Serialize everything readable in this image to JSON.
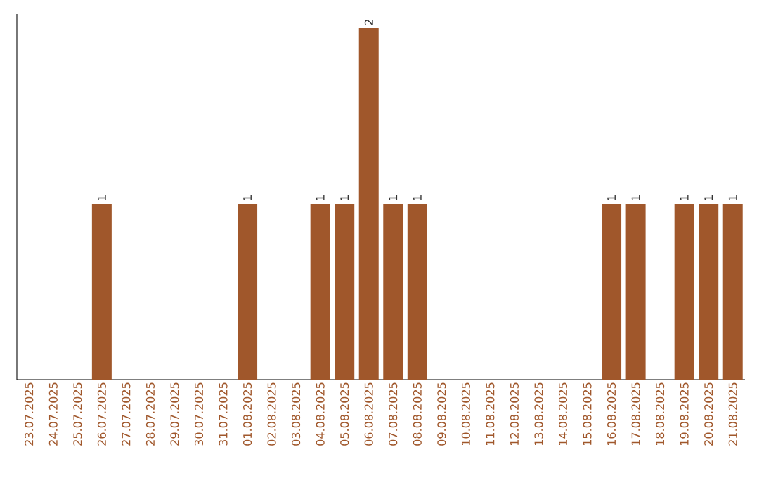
{
  "chart_data": {
    "type": "bar",
    "categories": [
      "23.07.2025",
      "24.07.2025",
      "25.07.2025",
      "26.07.2025",
      "27.07.2025",
      "28.07.2025",
      "29.07.2025",
      "30.07.2025",
      "31.07.2025",
      "01.08.2025",
      "02.08.2025",
      "03.08.2025",
      "04.08.2025",
      "05.08.2025",
      "06.08.2025",
      "07.08.2025",
      "08.08.2025",
      "09.08.2025",
      "10.08.2025",
      "11.08.2025",
      "12.08.2025",
      "13.08.2025",
      "14.08.2025",
      "15.08.2025",
      "16.08.2025",
      "17.08.2025",
      "18.08.2025",
      "19.08.2025",
      "20.08.2025",
      "21.08.2025"
    ],
    "values": [
      0,
      0,
      0,
      1,
      0,
      0,
      0,
      0,
      0,
      1,
      0,
      0,
      1,
      1,
      2,
      1,
      1,
      0,
      0,
      0,
      0,
      0,
      0,
      0,
      1,
      1,
      0,
      1,
      1,
      1
    ],
    "value_labels": [
      null,
      null,
      null,
      "1",
      null,
      null,
      null,
      null,
      null,
      "1",
      null,
      null,
      "1",
      "1",
      "2",
      "1",
      "1",
      null,
      null,
      null,
      null,
      null,
      null,
      null,
      "1",
      "1",
      null,
      "1",
      "1",
      "1"
    ],
    "color": "#a0572b"
  }
}
